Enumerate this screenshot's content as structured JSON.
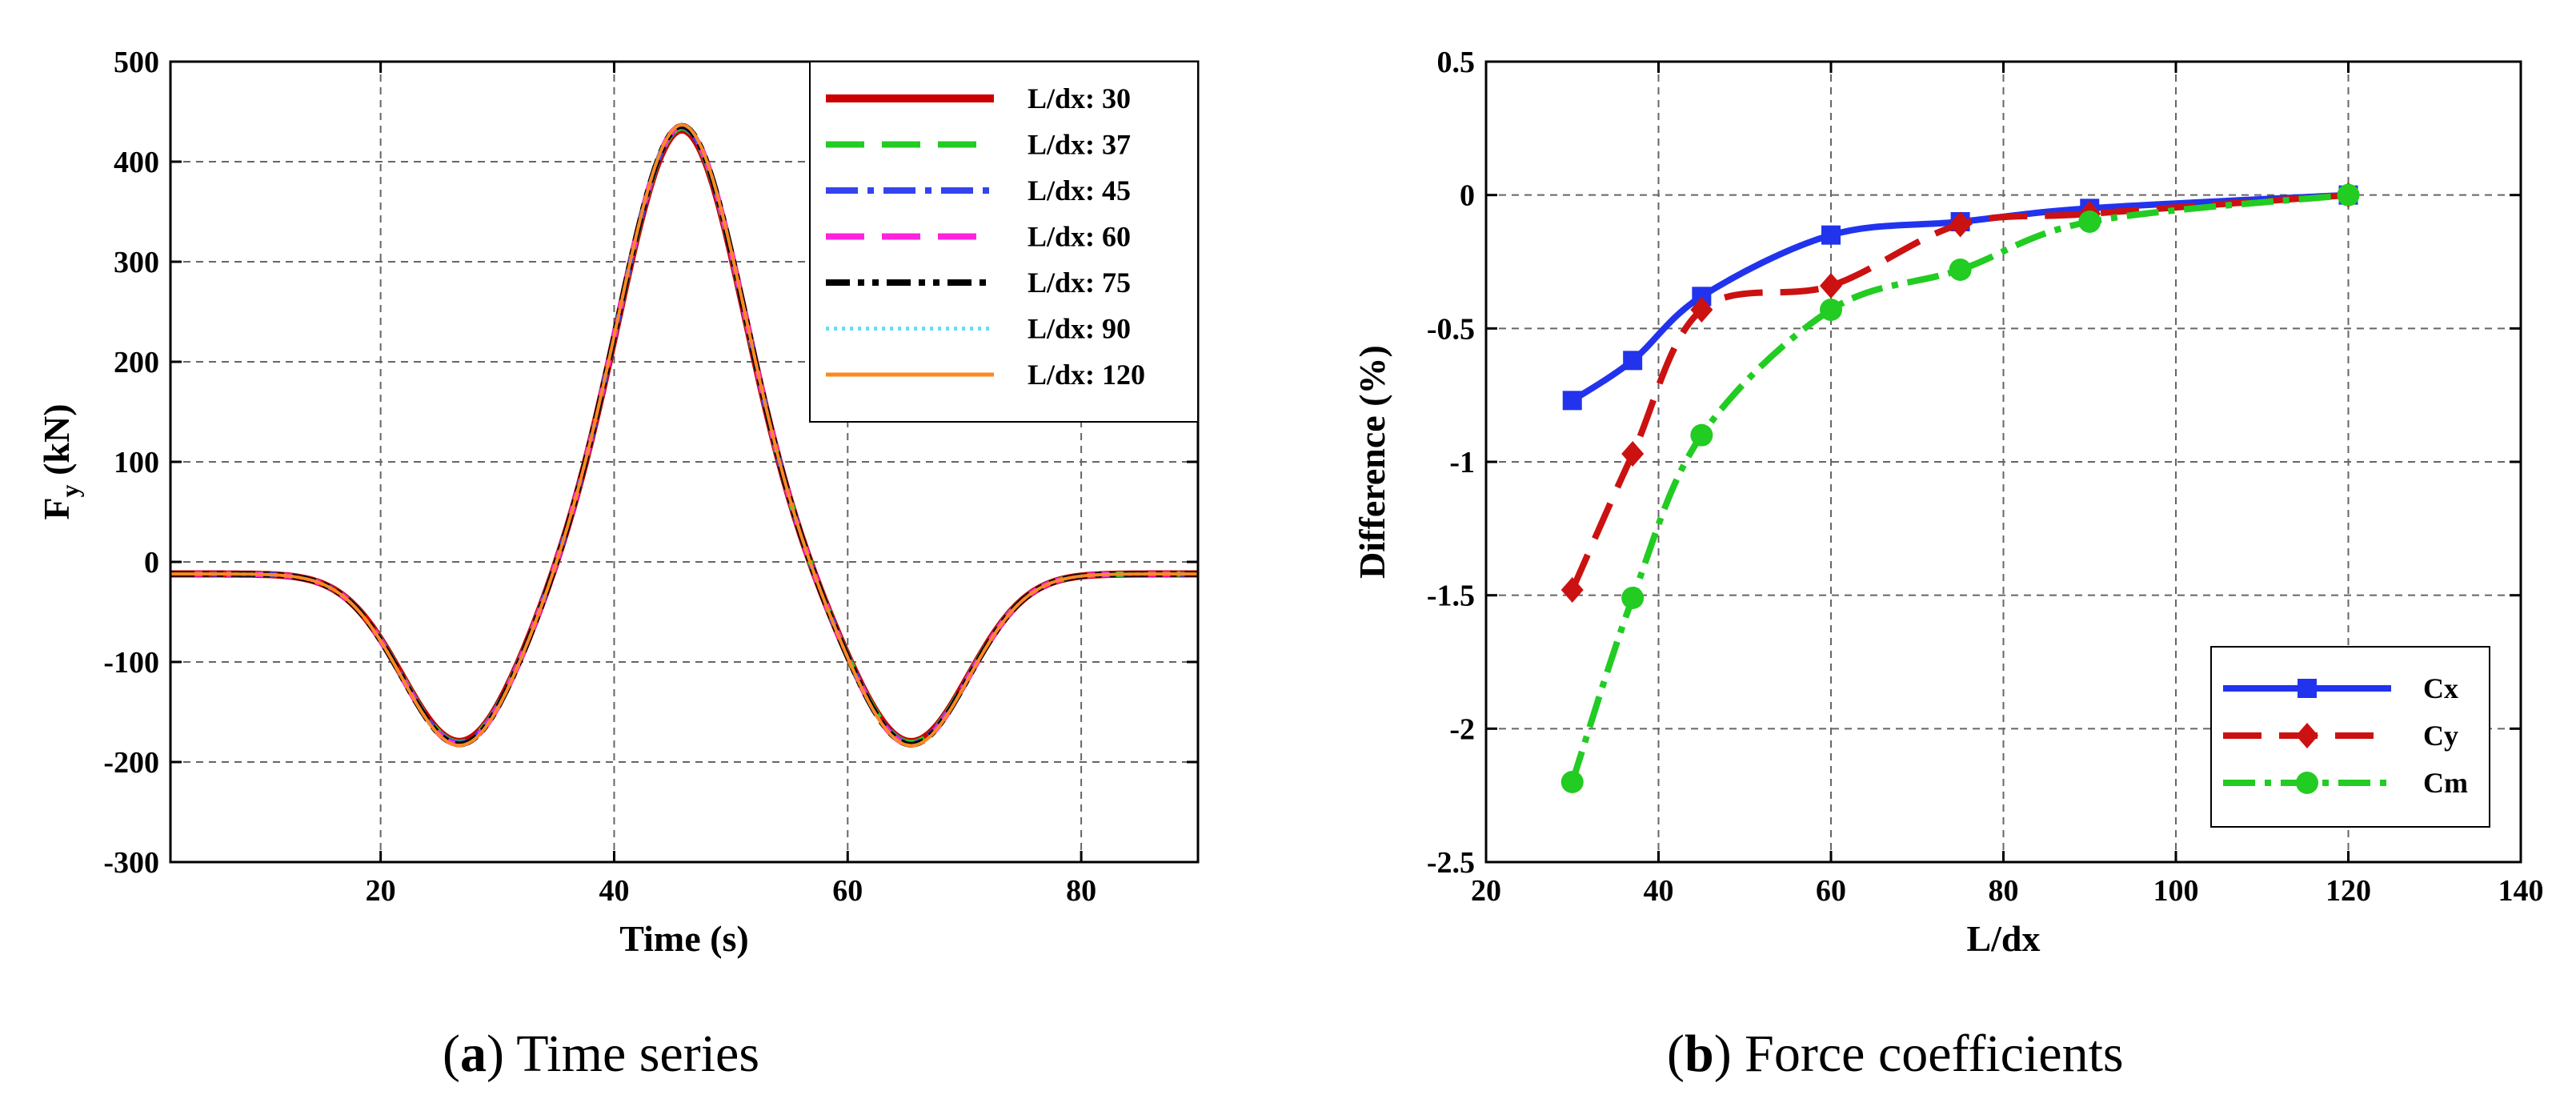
{
  "chart_data": [
    {
      "type": "line",
      "caption": {
        "paren_open": "(",
        "letter": "a",
        "text": ") Time series"
      },
      "xlabel": "Time (s)",
      "ylabel": {
        "main": "F",
        "sub": "y",
        "unit": " (kN)"
      },
      "xlim": [
        2,
        90
      ],
      "ylim": [
        -300,
        500
      ],
      "xticks": [
        20,
        40,
        60,
        80
      ],
      "yticks": [
        -300,
        -200,
        -100,
        0,
        100,
        200,
        300,
        400,
        500
      ],
      "ytick_labels": [
        "-300",
        "-200",
        "-100",
        "0",
        "100",
        "200",
        "300",
        "400",
        "500"
      ],
      "grid": true,
      "legend_position": "top-right",
      "series": [
        {
          "name": "L/dx: 30",
          "color": "#cc0000",
          "style": "solid-thick",
          "amp_peak": 432,
          "amp_trough": -180
        },
        {
          "name": "L/dx: 37",
          "color": "#22cc22",
          "style": "long-dash",
          "amp_peak": 434,
          "amp_trough": -181
        },
        {
          "name": "L/dx: 45",
          "color": "#3344ee",
          "style": "dash-dot",
          "amp_peak": 435,
          "amp_trough": -182
        },
        {
          "name": "L/dx: 60",
          "color": "#ff22dd",
          "style": "long-dash",
          "amp_peak": 436,
          "amp_trough": -183
        },
        {
          "name": "L/dx: 75",
          "color": "#000000",
          "style": "dash-dot-dot",
          "amp_peak": 436,
          "amp_trough": -183
        },
        {
          "name": "L/dx: 90",
          "color": "#66e0f0",
          "style": "dotted",
          "amp_peak": 437,
          "amp_trough": -184
        },
        {
          "name": "L/dx: 120",
          "color": "#ff8822",
          "style": "thin-solid",
          "amp_peak": 437,
          "amp_trough": -184
        }
      ],
      "curve_model": {
        "peak_time": 45.8,
        "peak_width": 7.4,
        "trough1_time": 26.8,
        "trough2_time": 65.4,
        "trough_width": 7.0,
        "tail_offset": -12
      }
    },
    {
      "type": "line",
      "caption": {
        "paren_open": "(",
        "letter": "b",
        "text": ") Force coefficients"
      },
      "xlabel": "L/dx",
      "ylabel": "Difference (%)",
      "xlim": [
        20,
        140
      ],
      "ylim": [
        -2.5,
        0.5
      ],
      "xticks": [
        20,
        40,
        60,
        80,
        100,
        120,
        140
      ],
      "yticks": [
        -2.5,
        -2,
        -1.5,
        -1,
        -0.5,
        0,
        0.5
      ],
      "ytick_labels": [
        "-2.5",
        "-2",
        "-1.5",
        "-1",
        "-0.5",
        "0",
        "0.5"
      ],
      "grid": true,
      "legend_position": "bottom-right",
      "series": [
        {
          "name": "Cx",
          "color": "#2233ee",
          "marker": "square",
          "style": "solid",
          "x": [
            30,
            37,
            45,
            60,
            75,
            90,
            120
          ],
          "y": [
            -0.77,
            -0.62,
            -0.38,
            -0.15,
            -0.1,
            -0.05,
            0.0
          ]
        },
        {
          "name": "Cy",
          "color": "#cc1111",
          "marker": "diamond",
          "style": "long-dash",
          "x": [
            30,
            37,
            45,
            60,
            75,
            90,
            120
          ],
          "y": [
            -1.48,
            -0.97,
            -0.43,
            -0.34,
            -0.11,
            -0.07,
            0.0
          ]
        },
        {
          "name": "Cm",
          "color": "#22cc22",
          "marker": "circle",
          "style": "dash-dot",
          "x": [
            30,
            37,
            45,
            60,
            75,
            90,
            120
          ],
          "y": [
            -2.2,
            -1.51,
            -0.9,
            -0.43,
            -0.28,
            -0.1,
            0.0
          ]
        }
      ]
    }
  ]
}
